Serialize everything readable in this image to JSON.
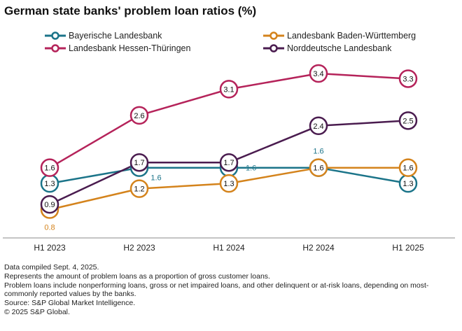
{
  "header": {
    "title": "German state banks' problem loan ratios (%)"
  },
  "chart_data": {
    "type": "line",
    "title": "German state banks' problem loan ratios (%)",
    "xlabel": "",
    "ylabel": "",
    "ylim": [
      0.5,
      3.6
    ],
    "grid": false,
    "legend_position": "top",
    "categories": [
      "H1 2023",
      "H2 2023",
      "H1 2024",
      "H2 2024",
      "H1 2025"
    ],
    "series": [
      {
        "name": "Bayerische Landesbank",
        "color": "#1b7489",
        "values": [
          1.3,
          1.6,
          1.6,
          1.6,
          1.3
        ],
        "labels": [
          "1.3",
          "1.6",
          "1.6",
          "1.6",
          "1.3"
        ]
      },
      {
        "name": "Landesbank Baden-Württemberg",
        "color": "#d4831c",
        "values": [
          0.8,
          1.2,
          1.3,
          1.6,
          1.6
        ],
        "labels": [
          "0.8",
          "1.2",
          "1.3",
          "1.6",
          "1.6"
        ]
      },
      {
        "name": "Landesbank Hessen-Thüringen",
        "color": "#b5235a",
        "values": [
          1.6,
          2.6,
          3.1,
          3.4,
          3.3
        ],
        "labels": [
          "1.6",
          "2.6",
          "3.1",
          "3.4",
          "3.3"
        ]
      },
      {
        "name": "Norddeutsche Landesbank",
        "color": "#4a1c4f",
        "values": [
          0.9,
          1.7,
          1.7,
          2.4,
          2.5
        ],
        "labels": [
          "0.9",
          "1.7",
          "1.7",
          "2.4",
          "2.5"
        ]
      }
    ]
  },
  "notes": {
    "compiled": "Data compiled Sept. 4, 2025.",
    "definition": "Represents the amount of problem loans as a proportion of gross customer loans.",
    "problem_loans": "Problem loans include nonperforming loans, gross or net impaired loans, and other delinquent or at-risk loans, depending on most-commonly reported values by the banks.",
    "source": "Source: S&P Global Market Intelligence.",
    "copyright": "© 2025 S&P Global."
  }
}
